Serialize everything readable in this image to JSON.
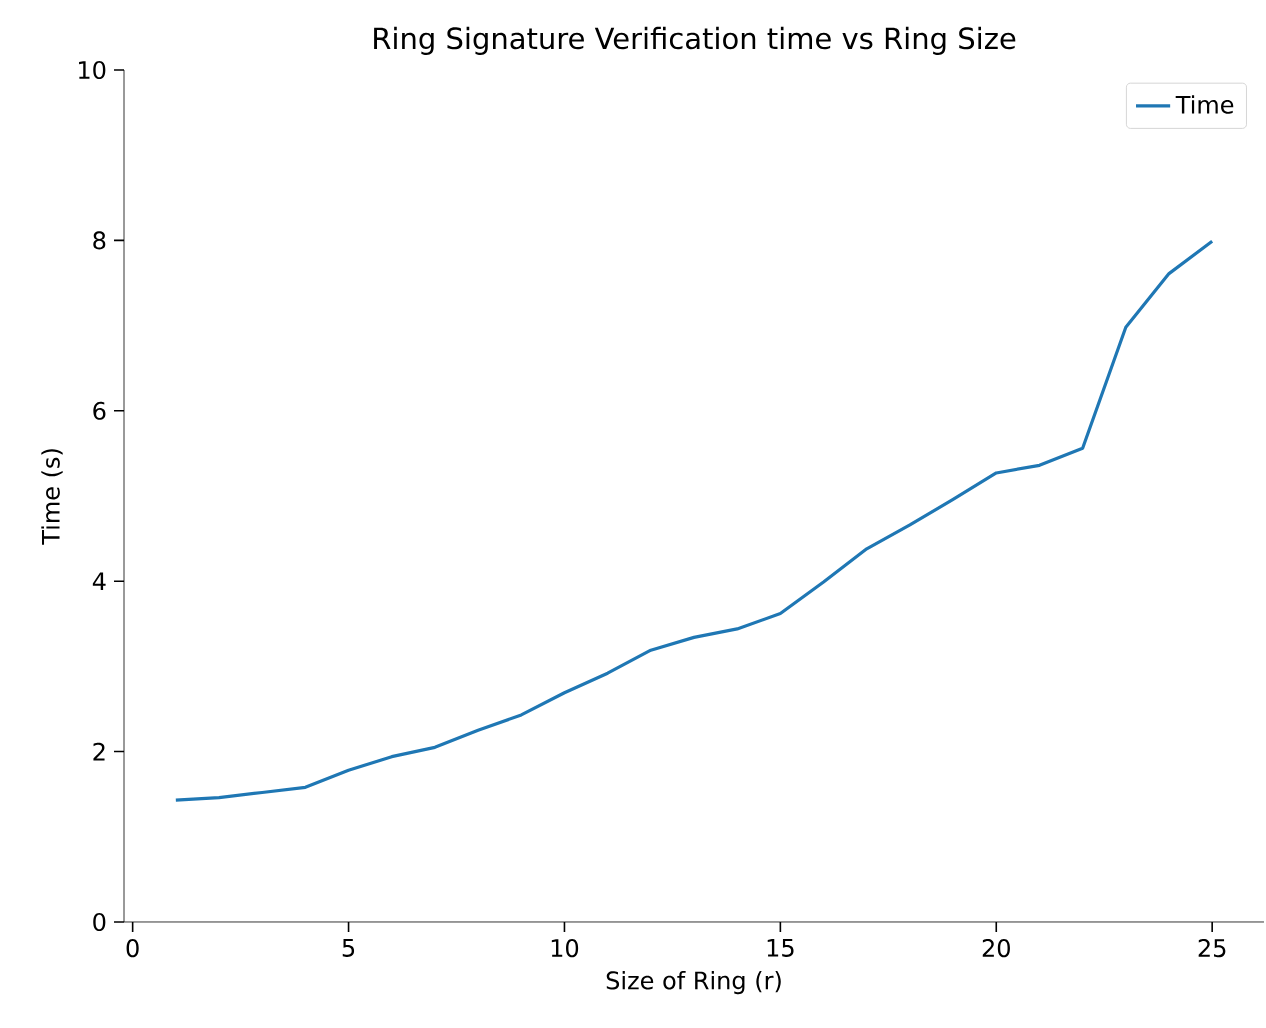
{
  "chart_data": {
    "type": "line",
    "title": "Ring Signature Verification time vs Ring Size",
    "xlabel": "Size of Ring (r)",
    "ylabel": "Time (s)",
    "x": [
      1,
      2,
      3,
      4,
      5,
      6,
      7,
      8,
      9,
      10,
      11,
      12,
      13,
      14,
      15,
      16,
      17,
      18,
      19,
      20,
      21,
      22,
      23,
      24,
      25
    ],
    "series": [
      {
        "name": "Time",
        "color": "#1f77b4",
        "values": [
          1.43,
          1.46,
          1.52,
          1.58,
          1.78,
          1.94,
          2.05,
          2.25,
          2.43,
          2.69,
          2.92,
          3.19,
          3.34,
          3.44,
          3.62,
          3.99,
          4.38,
          4.66,
          4.96,
          5.27,
          5.36,
          5.56,
          6.98,
          7.61,
          7.99
        ]
      }
    ],
    "xlim": [
      -0.2,
      26.2
    ],
    "ylim": [
      0,
      10
    ],
    "xticks": [
      0,
      5,
      10,
      15,
      20,
      25
    ],
    "yticks": [
      0,
      2,
      4,
      6,
      8,
      10
    ],
    "legend": "top right",
    "grid": false,
    "marker": "none",
    "line_style": "solid"
  }
}
